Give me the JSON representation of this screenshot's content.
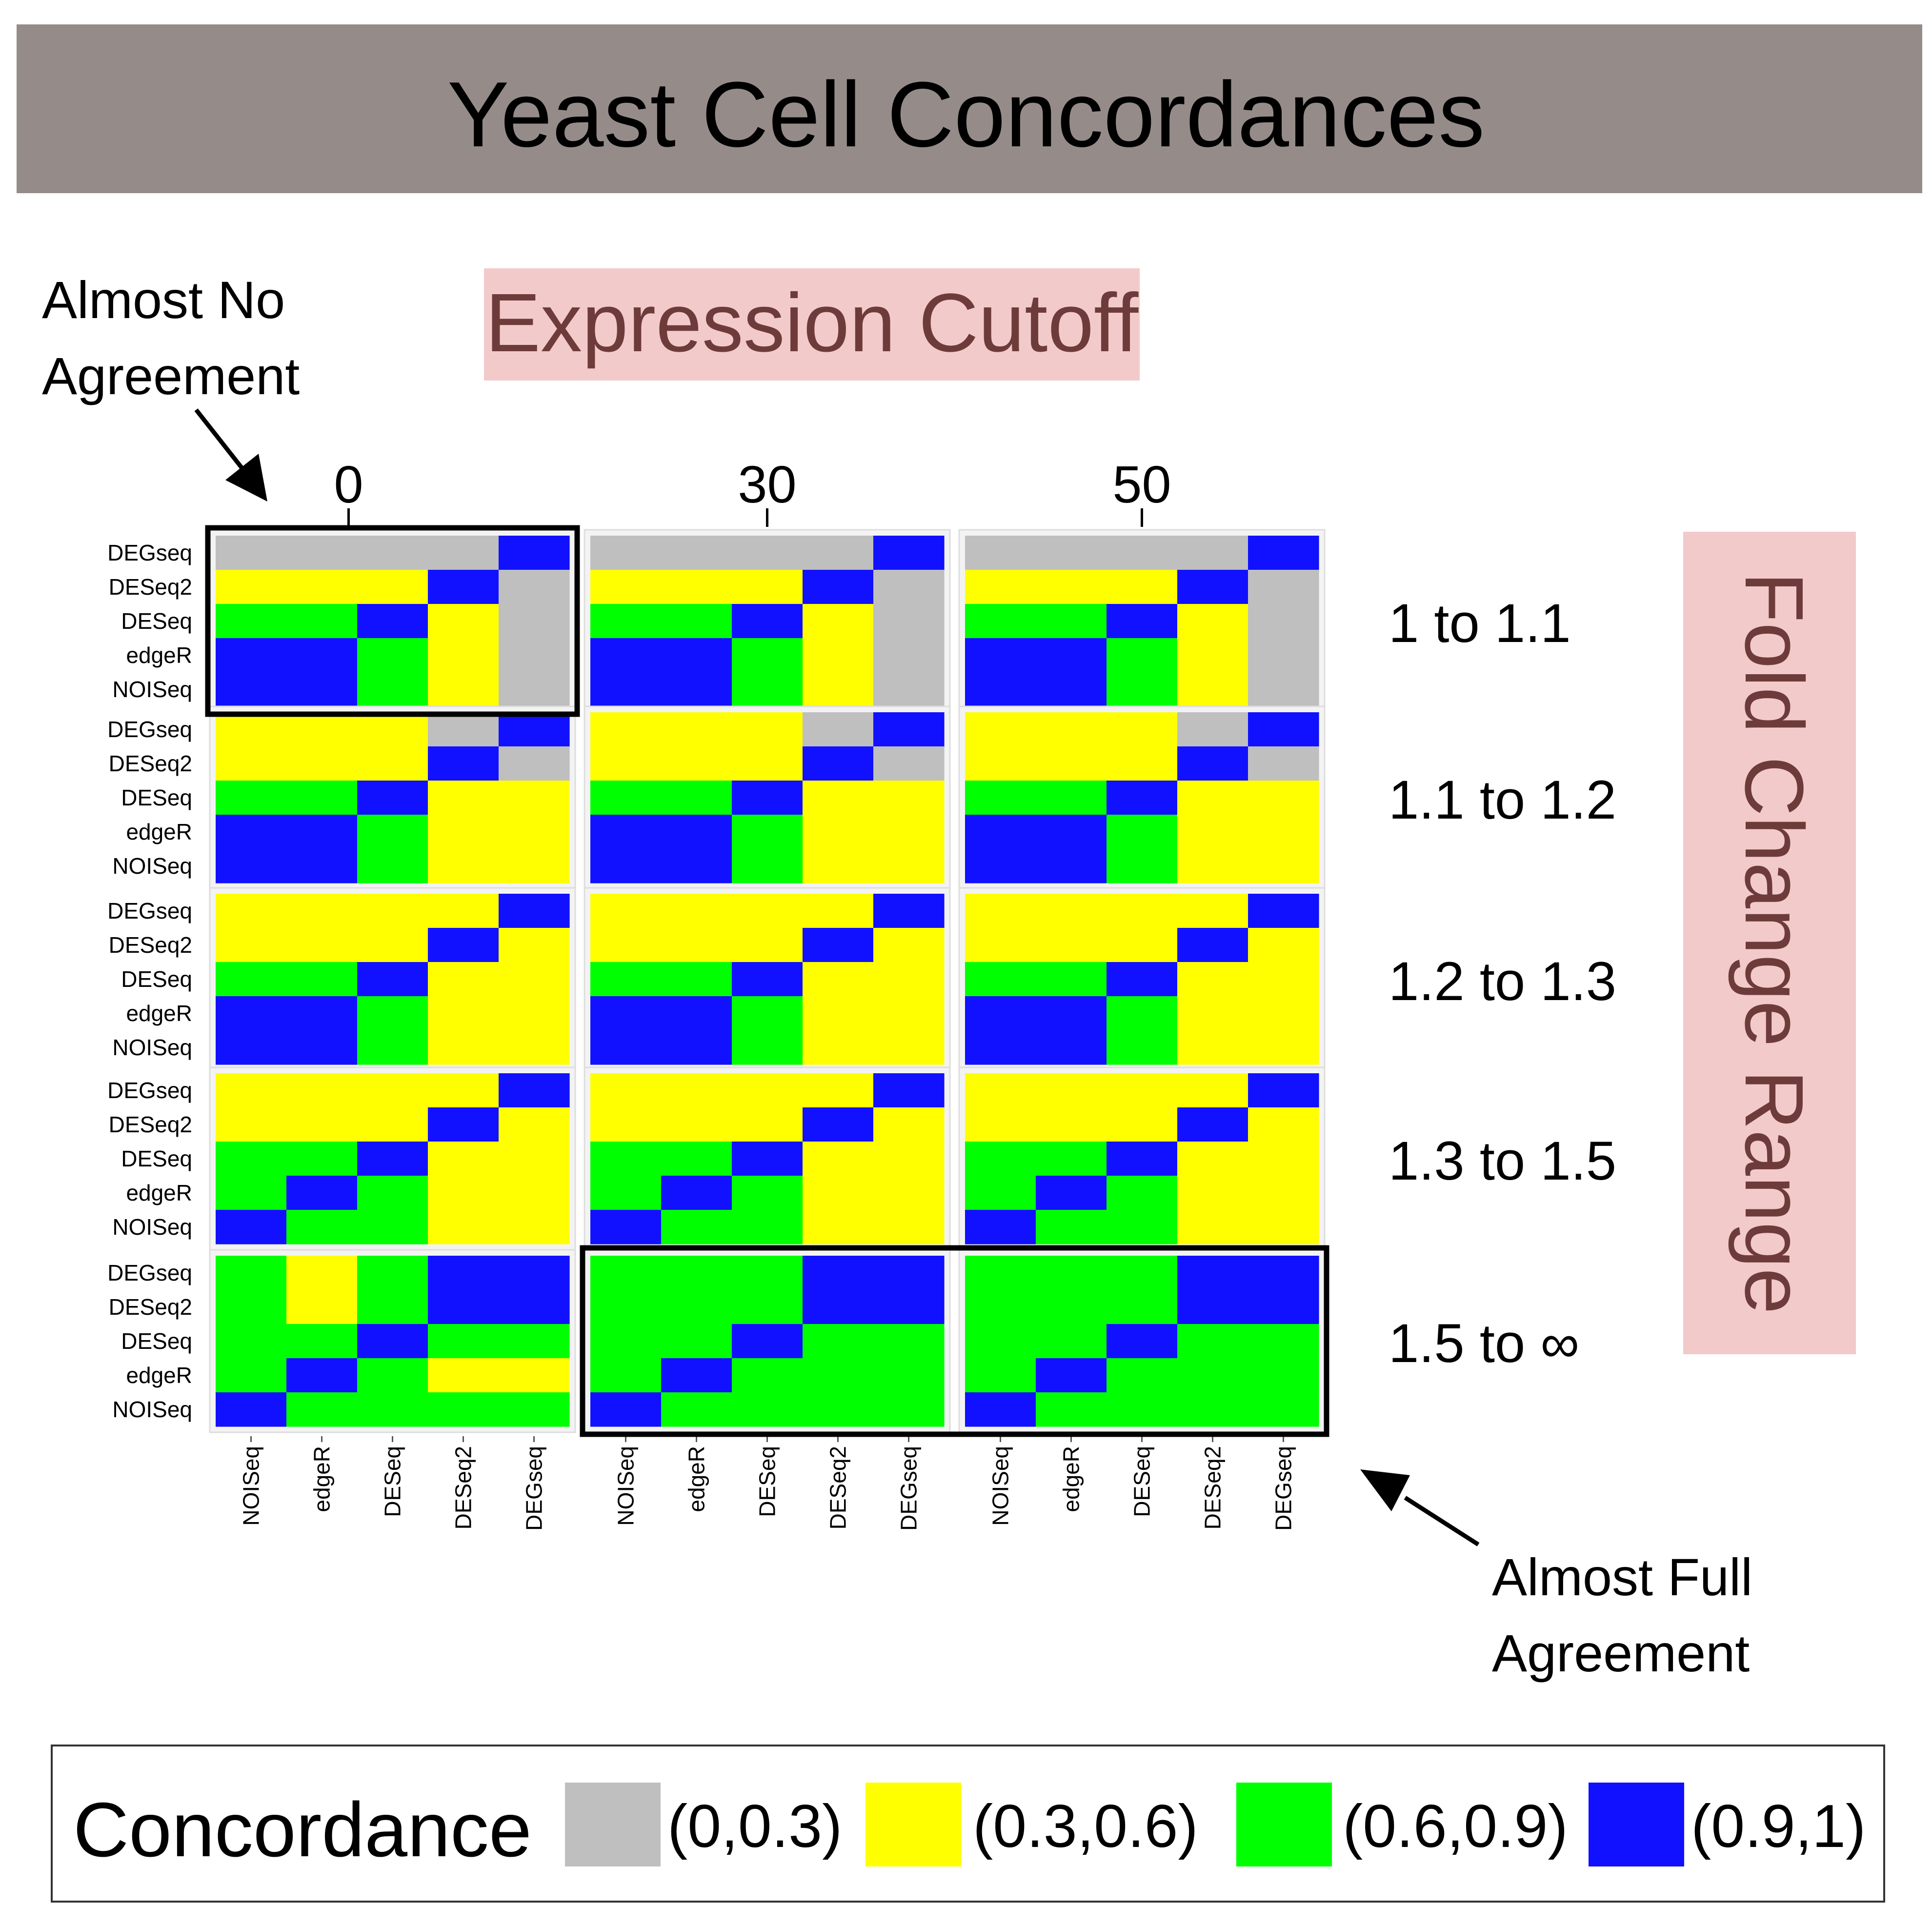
{
  "title": "Yeast Cell Concordances",
  "column_banner": "Expression Cutoff",
  "row_banner": "Fold Change Range",
  "annotations": {
    "low": [
      "Almost No",
      "Agreement"
    ],
    "high": [
      "Almost Full",
      "Agreement"
    ]
  },
  "colors": {
    "header_bg": "#958c8a",
    "banner_bg": "#f2caca",
    "banner_text": "#6e3b3b",
    "bin_0": "#bfbfbf",
    "bin_1": "#ffff00",
    "bin_2": "#00ff00",
    "bin_3": "#1111ff"
  },
  "chart_data": {
    "type": "heatmap",
    "title": "Yeast Cell Concordances",
    "methods_rows": [
      "DEGseq",
      "DESeq2",
      "DESeq",
      "edgeR",
      "NOISeq"
    ],
    "methods_cols": [
      "NOISeq",
      "edgeR",
      "DESeq",
      "DESeq2",
      "DEGseq"
    ],
    "expression_cutoffs": [
      "0",
      "30",
      "50"
    ],
    "fold_change_ranges": [
      "1 to 1.1",
      "1.1 to 1.2",
      "1.2 to 1.3",
      "1.3 to 1.5",
      "1.5 to ∞"
    ],
    "legend_title": "Concordance",
    "bins": [
      "(0,0.3)",
      "(0.3,0.6)",
      "(0.6,0.9)",
      "(0.9,1)"
    ],
    "highlighted": [
      {
        "fold_change": "1 to 1.1",
        "cutoffs": [
          "0"
        ],
        "label": "Almost No Agreement"
      },
      {
        "fold_change": "1.5 to ∞",
        "cutoffs": [
          "30",
          "50"
        ],
        "label": "Almost Full Agreement"
      }
    ],
    "panels": [
      [
        [
          [
            0,
            0,
            0,
            0,
            3
          ],
          [
            1,
            1,
            1,
            3,
            0
          ],
          [
            2,
            2,
            3,
            1,
            0
          ],
          [
            3,
            3,
            2,
            1,
            0
          ],
          [
            3,
            3,
            2,
            1,
            0
          ]
        ],
        [
          [
            0,
            0,
            0,
            0,
            3
          ],
          [
            1,
            1,
            1,
            3,
            0
          ],
          [
            2,
            2,
            3,
            1,
            0
          ],
          [
            3,
            3,
            2,
            1,
            0
          ],
          [
            3,
            3,
            2,
            1,
            0
          ]
        ],
        [
          [
            0,
            0,
            0,
            0,
            3
          ],
          [
            1,
            1,
            1,
            3,
            0
          ],
          [
            2,
            2,
            3,
            1,
            0
          ],
          [
            3,
            3,
            2,
            1,
            0
          ],
          [
            3,
            3,
            2,
            1,
            0
          ]
        ]
      ],
      [
        [
          [
            1,
            1,
            1,
            0,
            3
          ],
          [
            1,
            1,
            1,
            3,
            0
          ],
          [
            2,
            2,
            3,
            1,
            1
          ],
          [
            3,
            3,
            2,
            1,
            1
          ],
          [
            3,
            3,
            2,
            1,
            1
          ]
        ],
        [
          [
            1,
            1,
            1,
            0,
            3
          ],
          [
            1,
            1,
            1,
            3,
            0
          ],
          [
            2,
            2,
            3,
            1,
            1
          ],
          [
            3,
            3,
            2,
            1,
            1
          ],
          [
            3,
            3,
            2,
            1,
            1
          ]
        ],
        [
          [
            1,
            1,
            1,
            0,
            3
          ],
          [
            1,
            1,
            1,
            3,
            0
          ],
          [
            2,
            2,
            3,
            1,
            1
          ],
          [
            3,
            3,
            2,
            1,
            1
          ],
          [
            3,
            3,
            2,
            1,
            1
          ]
        ]
      ],
      [
        [
          [
            1,
            1,
            1,
            1,
            3
          ],
          [
            1,
            1,
            1,
            3,
            1
          ],
          [
            2,
            2,
            3,
            1,
            1
          ],
          [
            3,
            3,
            2,
            1,
            1
          ],
          [
            3,
            3,
            2,
            1,
            1
          ]
        ],
        [
          [
            1,
            1,
            1,
            1,
            3
          ],
          [
            1,
            1,
            1,
            3,
            1
          ],
          [
            2,
            2,
            3,
            1,
            1
          ],
          [
            3,
            3,
            2,
            1,
            1
          ],
          [
            3,
            3,
            2,
            1,
            1
          ]
        ],
        [
          [
            1,
            1,
            1,
            1,
            3
          ],
          [
            1,
            1,
            1,
            3,
            1
          ],
          [
            2,
            2,
            3,
            1,
            1
          ],
          [
            3,
            3,
            2,
            1,
            1
          ],
          [
            3,
            3,
            2,
            1,
            1
          ]
        ]
      ],
      [
        [
          [
            1,
            1,
            1,
            1,
            3
          ],
          [
            1,
            1,
            1,
            3,
            1
          ],
          [
            2,
            2,
            3,
            1,
            1
          ],
          [
            2,
            3,
            2,
            1,
            1
          ],
          [
            3,
            2,
            2,
            1,
            1
          ]
        ],
        [
          [
            1,
            1,
            1,
            1,
            3
          ],
          [
            1,
            1,
            1,
            3,
            1
          ],
          [
            2,
            2,
            3,
            1,
            1
          ],
          [
            2,
            3,
            2,
            1,
            1
          ],
          [
            3,
            2,
            2,
            1,
            1
          ]
        ],
        [
          [
            1,
            1,
            1,
            1,
            3
          ],
          [
            1,
            1,
            1,
            3,
            1
          ],
          [
            2,
            2,
            3,
            1,
            1
          ],
          [
            2,
            3,
            2,
            1,
            1
          ],
          [
            3,
            2,
            2,
            1,
            1
          ]
        ]
      ],
      [
        [
          [
            2,
            1,
            2,
            3,
            3
          ],
          [
            2,
            1,
            2,
            3,
            3
          ],
          [
            2,
            2,
            3,
            2,
            2
          ],
          [
            2,
            3,
            2,
            1,
            1
          ],
          [
            3,
            2,
            2,
            2,
            2
          ]
        ],
        [
          [
            2,
            2,
            2,
            3,
            3
          ],
          [
            2,
            2,
            2,
            3,
            3
          ],
          [
            2,
            2,
            3,
            2,
            2
          ],
          [
            2,
            3,
            2,
            2,
            2
          ],
          [
            3,
            2,
            2,
            2,
            2
          ]
        ],
        [
          [
            2,
            2,
            2,
            3,
            3
          ],
          [
            2,
            2,
            2,
            3,
            3
          ],
          [
            2,
            2,
            3,
            2,
            2
          ],
          [
            2,
            3,
            2,
            2,
            2
          ],
          [
            3,
            2,
            2,
            2,
            2
          ]
        ]
      ]
    ]
  }
}
